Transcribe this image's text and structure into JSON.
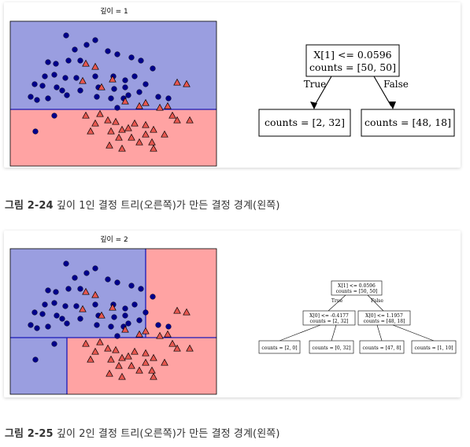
{
  "figures": [
    {
      "plot_title": "깊이 = 1",
      "tree": {
        "root": {
          "rule": "X[1] <= 0.0596",
          "counts": "counts = [50, 50]"
        },
        "edge_true": "True",
        "edge_false": "False",
        "leaves": [
          "counts = [2, 32]",
          "counts = [48, 18]"
        ]
      },
      "caption": {
        "label": "그림 2-24",
        "text": " 깊이 1인 결정 트리(오른쪽)가 만든 결정 경계(왼쪽)"
      }
    },
    {
      "plot_title": "깊이 = 2",
      "tree": {
        "root": {
          "rule": "X[1] <= 0.0596",
          "counts": "counts = [50, 50]"
        },
        "edge_true": "True",
        "edge_false": "False",
        "left": {
          "rule": "X[0] <= -0.4177",
          "counts": "counts = [2, 32]"
        },
        "right": {
          "rule": "X[0] <= 1.1957",
          "counts": "counts = [48, 18]"
        },
        "leaves": [
          "counts = [2, 0]",
          "counts = [0, 32]",
          "counts = [47, 8]",
          "counts = [1, 10]"
        ]
      },
      "caption": {
        "label": "그림 2-25",
        "text": " 깊이 2인 결정 트리(오른쪽)가 만든 결정 경계(왼쪽)"
      }
    }
  ],
  "colors": {
    "class0_region": "#9a9ee0",
    "class1_region": "#ffa3a3",
    "class0_point": "#00008b",
    "class1_point": "#e8574f",
    "boundary": "#1a1ab8"
  }
}
